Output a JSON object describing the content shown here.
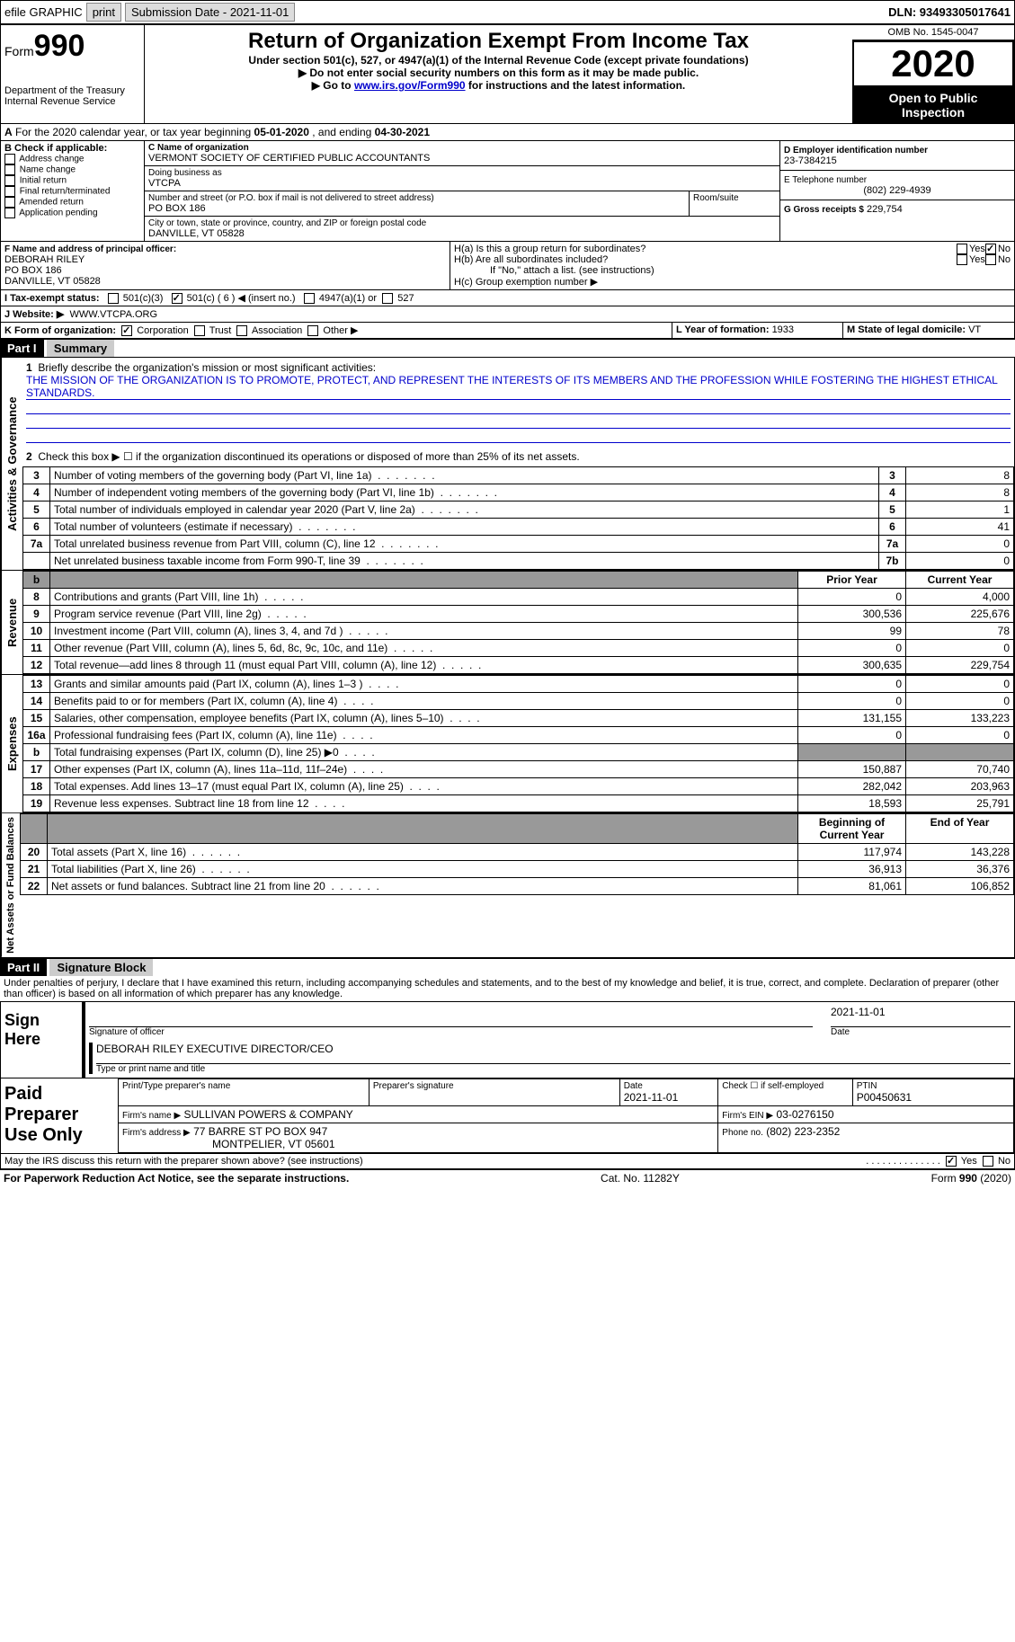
{
  "topbar": {
    "efile_label": "efile GRAPHIC",
    "print": "print",
    "sub_date_label": "Submission Date - 2021-11-01",
    "dln_label": "DLN: 93493305017641"
  },
  "header": {
    "form_label": "Form",
    "form_no": "990",
    "dept": "Department of the Treasury\nInternal Revenue Service",
    "title": "Return of Organization Exempt From Income Tax",
    "subtitle": "Under section 501(c), 527, or 4947(a)(1) of the Internal Revenue Code (except private foundations)",
    "note1": "▶ Do not enter social security numbers on this form as it may be made public.",
    "note2_pre": "▶ Go to ",
    "note2_link": "www.irs.gov/Form990",
    "note2_post": " for instructions and the latest information.",
    "omb": "OMB No. 1545-0047",
    "year": "2020",
    "pub_insp": "Open to Public Inspection"
  },
  "secA": {
    "text_pre": "For the 2020 calendar year, or tax year beginning ",
    "begin": "05-01-2020",
    "mid": " , and ending ",
    "end": "04-30-2021",
    "A_label": "A"
  },
  "boxB": {
    "title": "B Check if applicable:",
    "items": [
      "Address change",
      "Name change",
      "Initial return",
      "Final return/terminated",
      "Amended return",
      "Application pending"
    ]
  },
  "boxC": {
    "name_label": "C Name of organization",
    "org_name": "VERMONT SOCIETY OF CERTIFIED PUBLIC ACCOUNTANTS",
    "dba_label": "Doing business as",
    "dba": "VTCPA",
    "addr_label": "Number and street (or P.O. box if mail is not delivered to street address)",
    "room_label": "Room/suite",
    "street": "PO BOX 186",
    "city_label": "City or town, state or province, country, and ZIP or foreign postal code",
    "city": "DANVILLE, VT  05828"
  },
  "boxD": {
    "label": "D Employer identification number",
    "val": "23-7384215"
  },
  "boxE": {
    "label": "E Telephone number",
    "val": "(802) 229-4939"
  },
  "boxG": {
    "label": "G Gross receipts $",
    "val": "229,754"
  },
  "boxF": {
    "label": "F Name and address of principal officer:",
    "name": "DEBORAH RILEY",
    "street": "PO BOX 186",
    "city": "DANVILLE, VT  05828"
  },
  "boxH": {
    "a_label": "H(a)  Is this a group return for subordinates?",
    "b_label": "H(b)  Are all subordinates included?",
    "b_note": "If \"No,\" attach a list. (see instructions)",
    "c_label": "H(c)  Group exemption number ▶",
    "yes": "Yes",
    "no": "No"
  },
  "taxI": {
    "label": "I  Tax-exempt status:",
    "c3": "501(c)(3)",
    "c": "501(c) ( 6 ) ◀ (insert no.)",
    "a1": "4947(a)(1) or",
    "s527": "527"
  },
  "boxJ": {
    "label": "J  Website: ▶",
    "val": "WWW.VTCPA.ORG"
  },
  "boxK": {
    "label": "K Form of organization:",
    "corp": "Corporation",
    "trust": "Trust",
    "assoc": "Association",
    "other": "Other ▶"
  },
  "boxL": {
    "label": "L Year of formation: ",
    "val": "1933"
  },
  "boxM": {
    "label": "M State of legal domicile: ",
    "val": "VT"
  },
  "part1": {
    "hdr": "Part I",
    "title": "Summary"
  },
  "mission": {
    "q": "Briefly describe the organization's mission or most significant activities:",
    "text": "THE MISSION OF THE ORGANIZATION IS TO PROMOTE, PROTECT, AND REPRESENT THE INTERESTS OF ITS MEMBERS AND THE PROFESSION WHILE FOSTERING THE HIGHEST ETHICAL STANDARDS."
  },
  "gov_lines": {
    "l2": "Check this box ▶ ☐ if the organization discontinued its operations or disposed of more than 25% of its net assets.",
    "items": [
      {
        "n": "3",
        "t": "Number of voting members of the governing body (Part VI, line 1a)",
        "b": "3",
        "v": "8"
      },
      {
        "n": "4",
        "t": "Number of independent voting members of the governing body (Part VI, line 1b)",
        "b": "4",
        "v": "8"
      },
      {
        "n": "5",
        "t": "Total number of individuals employed in calendar year 2020 (Part V, line 2a)",
        "b": "5",
        "v": "1"
      },
      {
        "n": "6",
        "t": "Total number of volunteers (estimate if necessary)",
        "b": "6",
        "v": "41"
      },
      {
        "n": "7a",
        "t": "Total unrelated business revenue from Part VIII, column (C), line 12",
        "b": "7a",
        "v": "0"
      },
      {
        "n": "",
        "t": "Net unrelated business taxable income from Form 990-T, line 39",
        "b": "7b",
        "v": "0"
      }
    ]
  },
  "cols": {
    "b": "b",
    "prior": "Prior Year",
    "curr": "Current Year"
  },
  "revenue": {
    "label": "Revenue",
    "items": [
      {
        "n": "8",
        "t": "Contributions and grants (Part VIII, line 1h)",
        "p": "0",
        "c": "4,000"
      },
      {
        "n": "9",
        "t": "Program service revenue (Part VIII, line 2g)",
        "p": "300,536",
        "c": "225,676"
      },
      {
        "n": "10",
        "t": "Investment income (Part VIII, column (A), lines 3, 4, and 7d )",
        "p": "99",
        "c": "78"
      },
      {
        "n": "11",
        "t": "Other revenue (Part VIII, column (A), lines 5, 6d, 8c, 9c, 10c, and 11e)",
        "p": "0",
        "c": "0"
      },
      {
        "n": "12",
        "t": "Total revenue—add lines 8 through 11 (must equal Part VIII, column (A), line 12)",
        "p": "300,635",
        "c": "229,754"
      }
    ]
  },
  "expenses": {
    "label": "Expenses",
    "items": [
      {
        "n": "13",
        "t": "Grants and similar amounts paid (Part IX, column (A), lines 1–3 )",
        "p": "0",
        "c": "0"
      },
      {
        "n": "14",
        "t": "Benefits paid to or for members (Part IX, column (A), line 4)",
        "p": "0",
        "c": "0"
      },
      {
        "n": "15",
        "t": "Salaries, other compensation, employee benefits (Part IX, column (A), lines 5–10)",
        "p": "131,155",
        "c": "133,223"
      },
      {
        "n": "16a",
        "t": "Professional fundraising fees (Part IX, column (A), line 11e)",
        "p": "0",
        "c": "0"
      },
      {
        "n": "b",
        "t": "Total fundraising expenses (Part IX, column (D), line 25) ▶0",
        "p": "grey",
        "c": "grey"
      },
      {
        "n": "17",
        "t": "Other expenses (Part IX, column (A), lines 11a–11d, 11f–24e)",
        "p": "150,887",
        "c": "70,740"
      },
      {
        "n": "18",
        "t": "Total expenses. Add lines 13–17 (must equal Part IX, column (A), line 25)",
        "p": "282,042",
        "c": "203,963"
      },
      {
        "n": "19",
        "t": "Revenue less expenses. Subtract line 18 from line 12",
        "p": "18,593",
        "c": "25,791"
      }
    ]
  },
  "netassets": {
    "label": "Net Assets or Fund Balances",
    "begin": "Beginning of Current Year",
    "end": "End of Year",
    "items": [
      {
        "n": "20",
        "t": "Total assets (Part X, line 16)",
        "p": "117,974",
        "c": "143,228"
      },
      {
        "n": "21",
        "t": "Total liabilities (Part X, line 26)",
        "p": "36,913",
        "c": "36,376"
      },
      {
        "n": "22",
        "t": "Net assets or fund balances. Subtract line 21 from line 20",
        "p": "81,061",
        "c": "106,852"
      }
    ]
  },
  "part2": {
    "hdr": "Part II",
    "title": "Signature Block"
  },
  "sig": {
    "decl": "Under penalties of perjury, I declare that I have examined this return, including accompanying schedules and statements, and to the best of my knowledge and belief, it is true, correct, and complete. Declaration of preparer (other than officer) is based on all information of which preparer has any knowledge.",
    "sign_here": "Sign Here",
    "sig_officer": "Signature of officer",
    "date_lbl": "Date",
    "date_val": "2021-11-01",
    "name": "DEBORAH RILEY EXECUTIVE DIRECTOR/CEO",
    "name_lbl": "Type or print name and title"
  },
  "prep": {
    "title": "Paid Preparer Use Only",
    "ptname_lbl": "Print/Type preparer's name",
    "psig_lbl": "Preparer's signature",
    "date_lbl": "Date",
    "date_val": "2021-11-01",
    "chk_lbl": "Check ☐ if self-employed",
    "ptin_lbl": "PTIN",
    "ptin_val": "P00450631",
    "firm_name_lbl": "Firm's name    ▶",
    "firm_name": "SULLIVAN POWERS & COMPANY",
    "firm_ein_lbl": "Firm's EIN ▶",
    "firm_ein": "03-0276150",
    "firm_addr_lbl": "Firm's address ▶",
    "firm_addr": "77 BARRE ST PO BOX 947",
    "firm_city": "MONTPELIER, VT  05601",
    "phone_lbl": "Phone no.",
    "phone_val": "(802) 223-2352"
  },
  "discuss": {
    "q": "May the IRS discuss this return with the preparer shown above? (see instructions)",
    "yes": "Yes",
    "no": "No"
  },
  "footer": {
    "pra": "For Paperwork Reduction Act Notice, see the separate instructions.",
    "cat": "Cat. No. 11282Y",
    "form": "Form 990 (2020)"
  }
}
